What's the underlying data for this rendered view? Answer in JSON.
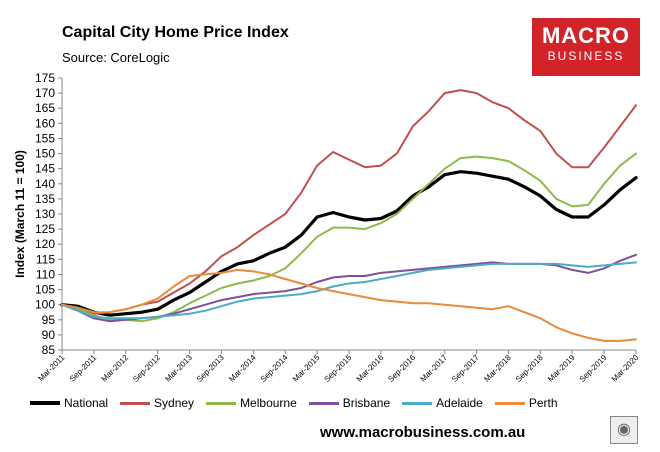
{
  "header": {
    "title": "Capital City Home Price Index",
    "subtitle": "Source: CoreLogic"
  },
  "logo": {
    "line1": "MACRO",
    "line2": "BUSINESS"
  },
  "footer": {
    "url": "www.macrobusiness.com.au",
    "icon": "fox-icon"
  },
  "chart_data": {
    "type": "line",
    "title": "Capital City Home Price Index",
    "ylabel": "Index (March 11 = 100)",
    "xlabel": "",
    "ylim": [
      85,
      175
    ],
    "yticks": [
      85,
      90,
      95,
      100,
      105,
      110,
      115,
      120,
      125,
      130,
      135,
      140,
      145,
      150,
      155,
      160,
      165,
      170,
      175
    ],
    "x_tick_labels": [
      "Mar-2011",
      "Sep-2011",
      "Mar-2012",
      "Sep-2012",
      "Mar-2013",
      "Sep-2013",
      "Mar-2014",
      "Sep-2014",
      "Mar-2015",
      "Sep-2015",
      "Mar-2016",
      "Sep-2016",
      "Mar-2017",
      "Sep-2017",
      "Mar-2018",
      "Sep-2018",
      "Mar-2019",
      "Sep-2019",
      "Mar-2020"
    ],
    "grid": false,
    "legend_position": "bottom",
    "series": [
      {
        "name": "National",
        "color": "#000000",
        "width": 3.2,
        "values": [
          100,
          99.5,
          97.5,
          96.5,
          97,
          97.5,
          98.5,
          101.5,
          104,
          107.5,
          111,
          113.5,
          114.5,
          117,
          119,
          123,
          129,
          130.5,
          129,
          128,
          128.5,
          131,
          136,
          139,
          143,
          144,
          143.5,
          142.5,
          141.5,
          139,
          136,
          131.5,
          129,
          129,
          133,
          138,
          142
        ]
      },
      {
        "name": "Sydney",
        "color": "#c0504d",
        "width": 2,
        "values": [
          100,
          99,
          97,
          97.5,
          98.5,
          100,
          101,
          104,
          107,
          111,
          116,
          119,
          123,
          126.5,
          130,
          137,
          146,
          150.5,
          148,
          145.5,
          146,
          150,
          159,
          164,
          170,
          171,
          170,
          167,
          165,
          161,
          157.5,
          150,
          145.5,
          145.5,
          152,
          159,
          166
        ]
      },
      {
        "name": "Melbourne",
        "color": "#8dba4c",
        "width": 2,
        "values": [
          100,
          98.5,
          96.5,
          95,
          95,
          94.5,
          95.5,
          97.5,
          100.5,
          103,
          105.5,
          107,
          108,
          109.5,
          112,
          117,
          122.5,
          125.5,
          125.5,
          125,
          127,
          130,
          135,
          140,
          145,
          148.5,
          149,
          148.5,
          147.5,
          144.5,
          141,
          135,
          132.5,
          133,
          140,
          146,
          150
        ]
      },
      {
        "name": "Brisbane",
        "color": "#7e4f9b",
        "width": 2,
        "values": [
          100,
          98,
          95.5,
          94.5,
          95,
          95.5,
          96,
          97,
          98.5,
          100,
          101.5,
          102.5,
          103.5,
          104,
          104.5,
          105.5,
          107.5,
          109,
          109.5,
          109.5,
          110.5,
          111,
          111.5,
          112,
          112.5,
          113,
          113.5,
          114,
          113.5,
          113.5,
          113.5,
          113,
          111.5,
          110.5,
          112,
          114.5,
          116.5
        ]
      },
      {
        "name": "Adelaide",
        "color": "#4bacc6",
        "width": 2,
        "values": [
          100,
          98,
          96,
          95.5,
          95.5,
          95.5,
          96,
          96.5,
          97,
          98,
          99.5,
          101,
          102,
          102.5,
          103,
          103.5,
          104.5,
          106,
          107,
          107.5,
          108.5,
          109.5,
          110.5,
          111.5,
          112,
          112.5,
          113,
          113.5,
          113.5,
          113.5,
          113.5,
          113.5,
          113,
          112.5,
          113,
          113.5,
          114
        ]
      },
      {
        "name": "Perth",
        "color": "#e98b3a",
        "width": 2,
        "values": [
          100,
          99,
          97.5,
          97.5,
          98.5,
          100,
          102,
          106,
          109.5,
          110,
          110.5,
          111.5,
          111,
          110,
          108.5,
          107,
          105.5,
          104.5,
          103.5,
          102.5,
          101.5,
          101,
          100.5,
          100.5,
          100,
          99.5,
          99,
          98.5,
          99.5,
          97.5,
          95.5,
          92.5,
          90.5,
          89,
          88,
          88,
          88.5
        ]
      }
    ]
  }
}
